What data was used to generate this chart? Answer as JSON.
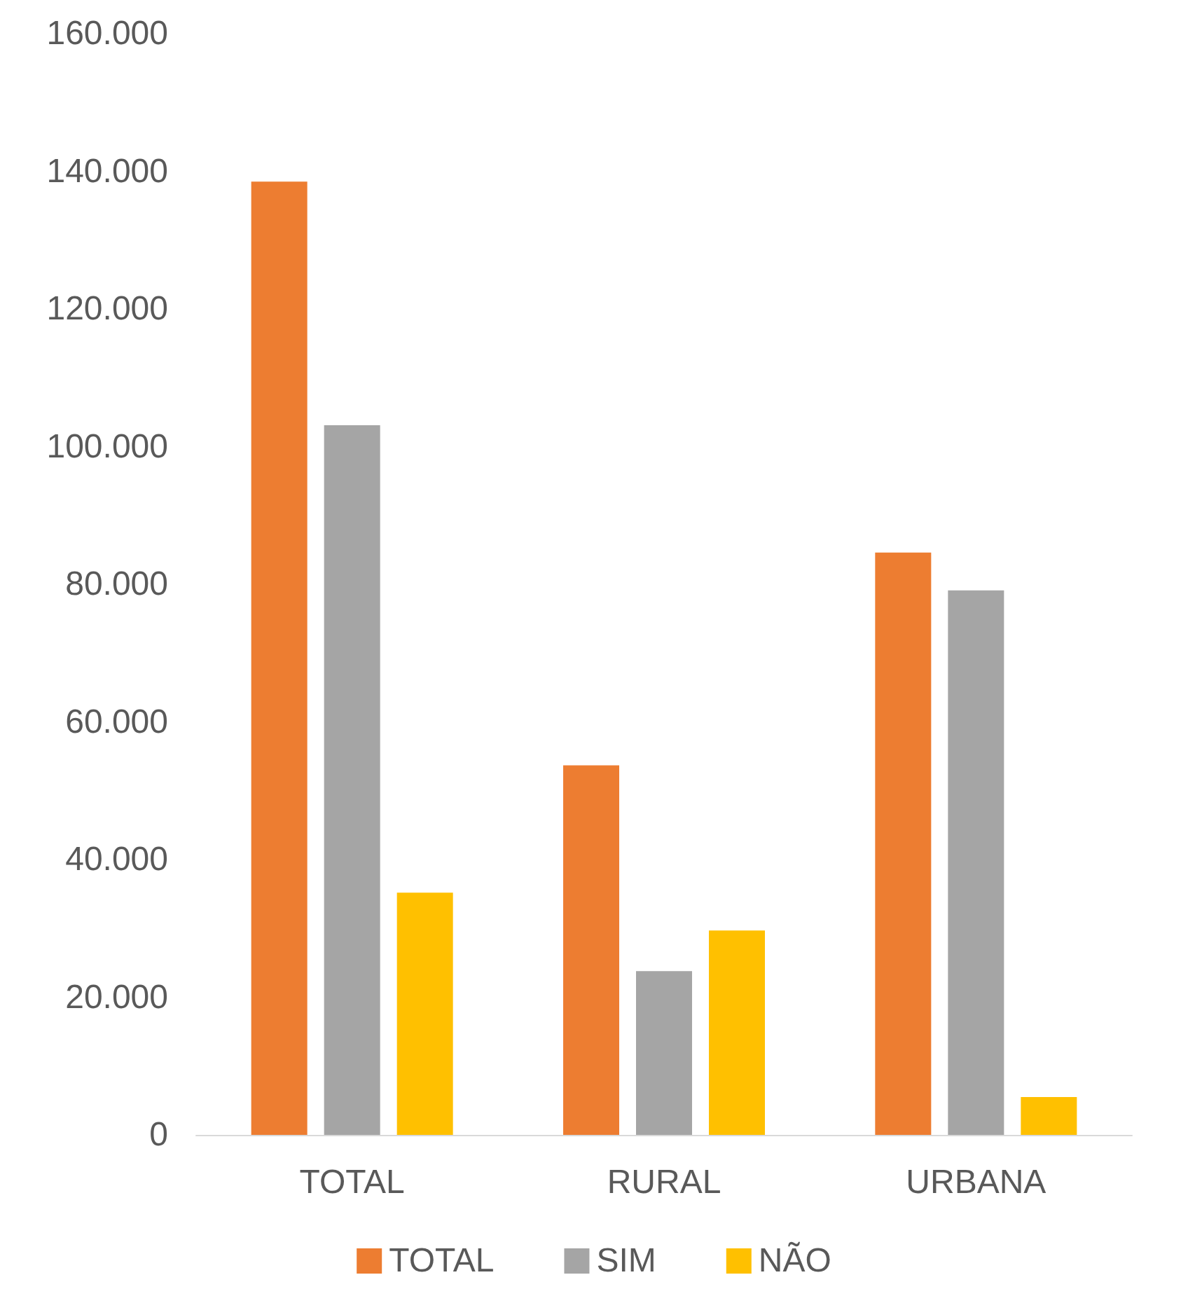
{
  "chart_data": {
    "type": "bar",
    "categories": [
      "TOTAL",
      "RURAL",
      "URBANA"
    ],
    "series": [
      {
        "name": "TOTAL",
        "color": "#ed7d31",
        "values": [
          138500,
          53700,
          84600
        ]
      },
      {
        "name": "SIM",
        "color": "#a5a5a5",
        "values": [
          103100,
          23800,
          79100
        ]
      },
      {
        "name": "NÃO",
        "color": "#ffc000",
        "values": [
          35200,
          29700,
          5500
        ]
      }
    ],
    "ylim": [
      0,
      160000
    ],
    "yticks": [
      {
        "value": 0,
        "label": "0"
      },
      {
        "value": 20000,
        "label": "20.000"
      },
      {
        "value": 40000,
        "label": "40.000"
      },
      {
        "value": 60000,
        "label": "60.000"
      },
      {
        "value": 80000,
        "label": "80.000"
      },
      {
        "value": 100000,
        "label": "100.000"
      },
      {
        "value": 120000,
        "label": "120.000"
      },
      {
        "value": 140000,
        "label": "140.000"
      },
      {
        "value": 160000,
        "label": "160.000"
      }
    ],
    "grid": false,
    "legend": "bottom"
  }
}
